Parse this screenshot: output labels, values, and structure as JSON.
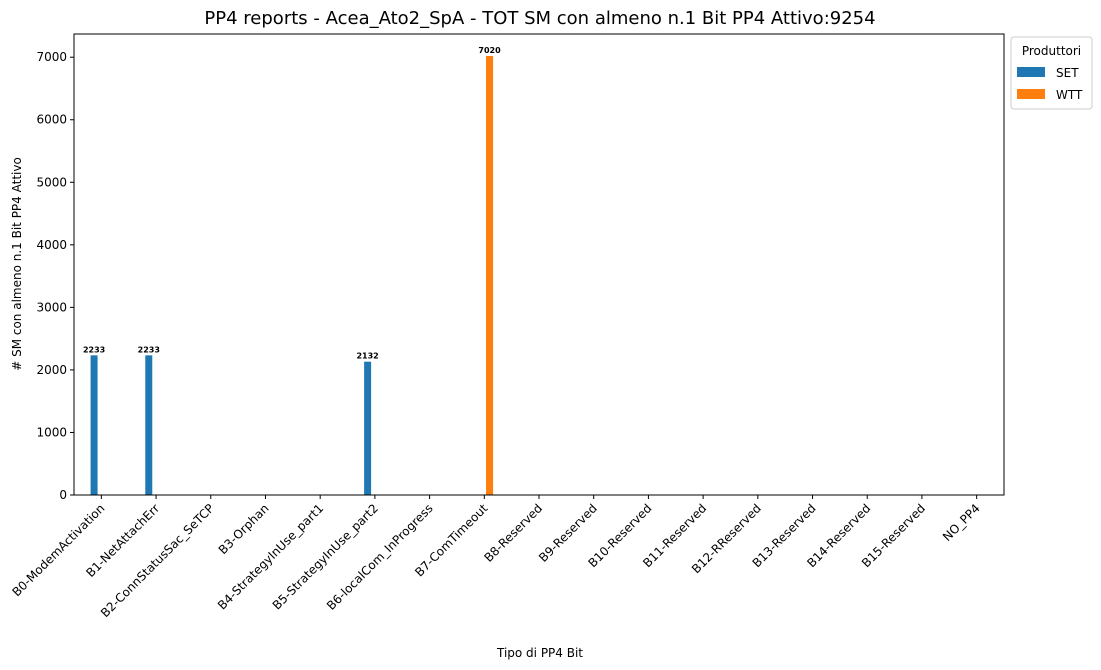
{
  "chart_data": {
    "type": "bar",
    "title": "PP4 reports - Acea_Ato2_SpA - TOT SM con almeno n.1 Bit PP4 Attivo:9254",
    "xlabel": "Tipo di PP4 Bit",
    "ylabel": "# SM con almeno n.1 Bit PP4 Attivo",
    "ylim": [
      0,
      7371
    ],
    "yticks": [
      0,
      1000,
      2000,
      3000,
      4000,
      5000,
      6000,
      7000
    ],
    "categories": [
      "B0-ModemActivation",
      "B1-NetAttachErr",
      "B2-ConnStatusSac_SeTCP",
      "B3-Orphan",
      "B4-StrategyInUse_part1",
      "B5-StrategyInUse_part2",
      "B6-localCom_InProgress",
      "B7-ComTimeout",
      "B8-Reserved",
      "B9-Reserved",
      "B10-Reserved",
      "B11-Reserved",
      "B12-RReserved",
      "B13-Reserved",
      "B14-Reserved",
      "B15-Reserved",
      "NO_PP4"
    ],
    "series": [
      {
        "name": "SET",
        "color": "#1f77b4",
        "values": [
          2233,
          2233,
          0,
          0,
          0,
          2132,
          0,
          0,
          0,
          0,
          0,
          0,
          0,
          0,
          0,
          0,
          0
        ]
      },
      {
        "name": "WTT",
        "color": "#ff7f0e",
        "values": [
          0,
          0,
          0,
          0,
          0,
          0,
          0,
          7020,
          0,
          0,
          0,
          0,
          0,
          0,
          0,
          0,
          0
        ]
      }
    ],
    "legend": {
      "title": "Produttori",
      "placement": "outside-top-right"
    },
    "grid": false
  }
}
